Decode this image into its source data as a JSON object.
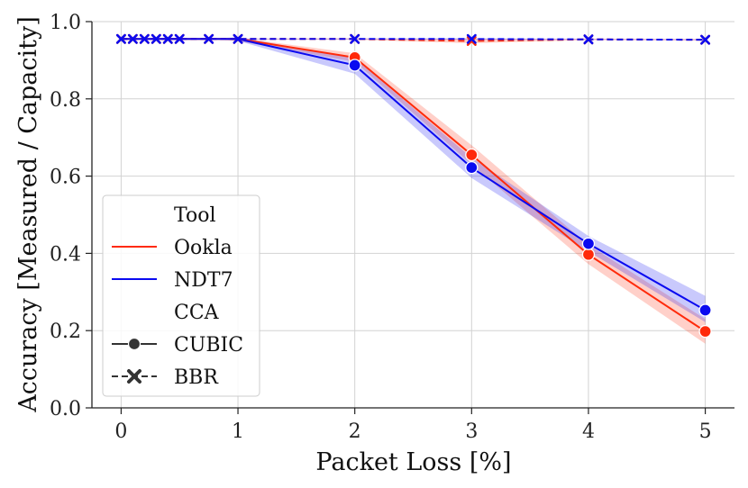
{
  "chart_data": {
    "type": "line",
    "xlabel": "Packet Loss [%]",
    "ylabel": "Accuracy [Measured / Capacity]",
    "xlim": [
      -0.25,
      5.25
    ],
    "ylim": [
      0.0,
      1.0
    ],
    "xticks": [
      "0",
      "1",
      "2",
      "3",
      "4",
      "5"
    ],
    "yticks": [
      "0.0",
      "0.2",
      "0.4",
      "0.6",
      "0.8",
      "1.0"
    ],
    "grid": true,
    "legend_position": "lower-left",
    "colors": {
      "Ookla": "#ff2a0a",
      "NDT7": "#0a0af0",
      "neutral": "#333333"
    },
    "series": [
      {
        "name": "Ookla",
        "cca": "CUBIC",
        "style": "solid",
        "marker": "circle",
        "x": [
          0,
          0.1,
          0.2,
          0.3,
          0.4,
          0.5,
          0.75,
          1,
          2,
          3,
          4,
          5
        ],
        "y": [
          0.955,
          0.955,
          0.955,
          0.955,
          0.955,
          0.955,
          0.955,
          0.955,
          0.907,
          0.655,
          0.397,
          0.198
        ],
        "lower": [
          0.955,
          0.955,
          0.955,
          0.955,
          0.955,
          0.955,
          0.955,
          0.95,
          0.896,
          0.63,
          0.372,
          0.166
        ],
        "upper": [
          0.955,
          0.955,
          0.955,
          0.955,
          0.955,
          0.955,
          0.955,
          0.958,
          0.918,
          0.68,
          0.422,
          0.23
        ],
        "marker_x": [
          2,
          3,
          4,
          5
        ]
      },
      {
        "name": "NDT7",
        "cca": "CUBIC",
        "style": "solid",
        "marker": "circle",
        "x": [
          0,
          0.1,
          0.2,
          0.3,
          0.4,
          0.5,
          0.75,
          1,
          2,
          3,
          4,
          5
        ],
        "y": [
          0.955,
          0.955,
          0.955,
          0.955,
          0.955,
          0.955,
          0.955,
          0.955,
          0.887,
          0.622,
          0.425,
          0.253
        ],
        "lower": [
          0.955,
          0.955,
          0.955,
          0.955,
          0.955,
          0.955,
          0.955,
          0.95,
          0.865,
          0.595,
          0.405,
          0.222
        ],
        "upper": [
          0.955,
          0.955,
          0.955,
          0.955,
          0.955,
          0.955,
          0.955,
          0.96,
          0.905,
          0.648,
          0.445,
          0.29
        ],
        "marker_x": [
          2,
          3,
          4,
          5
        ]
      },
      {
        "name": "Ookla",
        "cca": "BBR",
        "style": "dashed",
        "marker": "x",
        "x": [
          0,
          0.1,
          0.2,
          0.3,
          0.4,
          0.5,
          0.75,
          1,
          2,
          3,
          4,
          5
        ],
        "y": [
          0.955,
          0.955,
          0.955,
          0.955,
          0.955,
          0.955,
          0.955,
          0.955,
          0.955,
          0.95,
          0.954,
          0.953
        ],
        "lower": [
          0.955,
          0.955,
          0.955,
          0.955,
          0.955,
          0.955,
          0.955,
          0.954,
          0.953,
          0.944,
          0.952,
          0.951
        ],
        "upper": [
          0.955,
          0.955,
          0.955,
          0.955,
          0.955,
          0.955,
          0.955,
          0.956,
          0.957,
          0.956,
          0.956,
          0.955
        ]
      },
      {
        "name": "NDT7",
        "cca": "BBR",
        "style": "dashed",
        "marker": "x",
        "x": [
          0,
          0.1,
          0.2,
          0.3,
          0.4,
          0.5,
          0.75,
          1,
          2,
          3,
          4,
          5
        ],
        "y": [
          0.955,
          0.955,
          0.955,
          0.955,
          0.955,
          0.955,
          0.955,
          0.955,
          0.955,
          0.955,
          0.954,
          0.953
        ],
        "lower": [
          0.955,
          0.955,
          0.955,
          0.955,
          0.955,
          0.955,
          0.955,
          0.954,
          0.954,
          0.953,
          0.953,
          0.952
        ],
        "upper": [
          0.955,
          0.955,
          0.955,
          0.955,
          0.955,
          0.955,
          0.955,
          0.956,
          0.956,
          0.957,
          0.955,
          0.954
        ]
      }
    ],
    "legend": {
      "tool_title": "Tool",
      "tool_items": [
        "Ookla",
        "NDT7"
      ],
      "cca_title": "CCA",
      "cca_items": [
        "CUBIC",
        "BBR"
      ]
    }
  }
}
